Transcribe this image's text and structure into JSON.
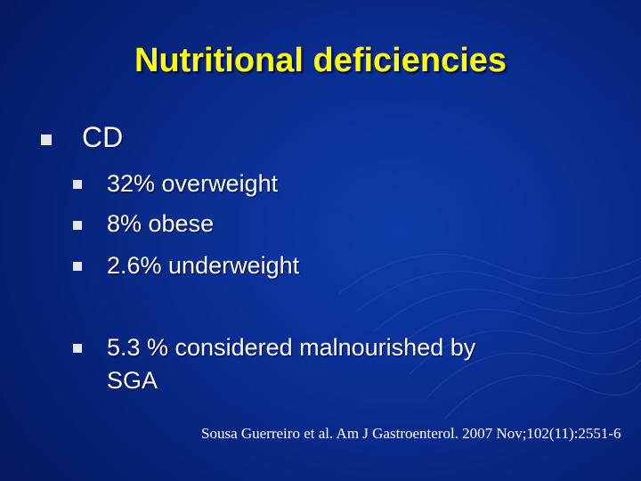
{
  "slide": {
    "title": "Nutritional deficiencies",
    "main_bullet": "CD",
    "sub_bullets": [
      "32% overweight",
      "8% obese",
      "2.6% underweight"
    ],
    "sga_bullet": {
      "line1": "5.3 % considered malnourished by",
      "line2": "SGA"
    },
    "citation": "Sousa Guerreiro et al. Am J Gastroenterol. 2007 Nov;102(11):2551-6"
  }
}
